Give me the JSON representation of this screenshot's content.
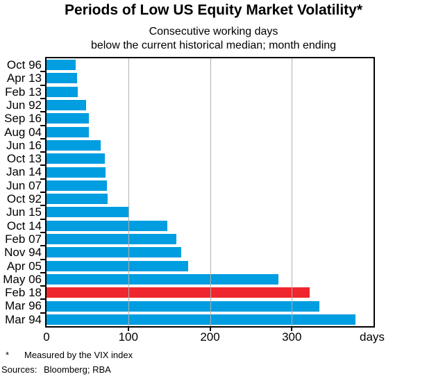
{
  "header": {
    "title": "Periods of Low US Equity Market Volatility*",
    "subtitle1": "Consecutive working days",
    "subtitle2": "below the current historical median; month ending"
  },
  "footnote": {
    "marker": "*",
    "text": "Measured by the VIX index"
  },
  "sources": {
    "label": "Sources:",
    "value": "Bloomberg; RBA"
  },
  "colors": {
    "bar": "#009ee0",
    "highlight": "#f0262f",
    "gridline": "#b0b0b0",
    "axis": "#000000",
    "background": "#ffffff",
    "text": "#000000"
  },
  "chart_data": {
    "type": "bar",
    "orientation": "horizontal",
    "title": "Periods of Low US Equity Market Volatility*",
    "subtitle": [
      "Consecutive working days",
      "below the current historical median; month ending"
    ],
    "categories": [
      "Oct 96",
      "Apr 13",
      "Feb 13",
      "Jun 92",
      "Sep 16",
      "Aug 04",
      "Jun 16",
      "Oct 13",
      "Jan 14",
      "Jun 07",
      "Oct 92",
      "Jun 15",
      "Oct 14",
      "Feb 07",
      "Nov 94",
      "Apr 05",
      "May 06",
      "Feb 18",
      "Mar 96",
      "Mar 94"
    ],
    "values": [
      36,
      37,
      38,
      48,
      52,
      52,
      66,
      71,
      72,
      74,
      75,
      100,
      148,
      159,
      165,
      173,
      284,
      322,
      334,
      378
    ],
    "highlight_category": "Feb 18",
    "unit_label": "days",
    "xlabel": "days",
    "ylabel": "",
    "xlim": [
      0,
      400
    ],
    "xticks": [
      0,
      100,
      200,
      300
    ],
    "grid": "vertical-at-xticks",
    "legend": "none"
  }
}
